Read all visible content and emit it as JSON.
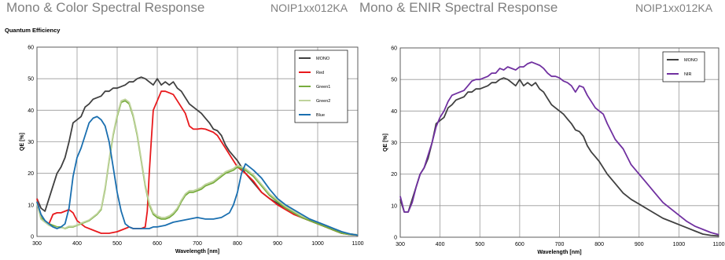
{
  "headers": {
    "left_title": "Mono & Color Spectral Response",
    "left_part": "NOIP1xx012KA",
    "right_title": "Mono & ENIR Spectral Response",
    "right_part": "NOIP1xx012KA",
    "left_subtitle": "Quantum Efficiency"
  },
  "colors": {
    "mono": "#404040",
    "red": "#e8191c",
    "green1": "#77ac3d",
    "green2": "#bfd39c",
    "blue": "#1a6fb0",
    "nir": "#7030a0",
    "grid": "#999999"
  },
  "chart_data": [
    {
      "type": "line",
      "title": "Quantum Efficiency",
      "xlabel": "Wavelength [nm]",
      "ylabel": "QE [%]",
      "xlim": [
        300,
        1100
      ],
      "ylim": [
        0,
        60
      ],
      "xticks": [
        300,
        400,
        500,
        600,
        700,
        800,
        900,
        1000,
        1100
      ],
      "yticks": [
        0,
        10,
        20,
        30,
        40,
        50,
        60
      ],
      "grid": true,
      "legend_position": "top-right",
      "series": [
        {
          "name": "MONO",
          "color": "#404040",
          "x": [
            300,
            310,
            320,
            330,
            340,
            350,
            360,
            370,
            380,
            390,
            400,
            410,
            420,
            430,
            440,
            450,
            460,
            470,
            480,
            490,
            500,
            510,
            520,
            530,
            540,
            550,
            560,
            570,
            580,
            590,
            600,
            610,
            620,
            630,
            640,
            650,
            660,
            670,
            680,
            690,
            700,
            710,
            720,
            730,
            740,
            750,
            760,
            770,
            780,
            790,
            800,
            820,
            840,
            860,
            880,
            900,
            920,
            940,
            960,
            980,
            1000,
            1020,
            1040,
            1060,
            1080,
            1100
          ],
          "y": [
            12,
            9,
            8,
            12,
            16,
            20,
            22,
            25,
            30,
            36,
            37,
            38,
            41,
            42,
            43.5,
            44,
            44.5,
            46,
            46,
            47,
            47,
            47.5,
            48,
            49,
            49,
            50,
            50.5,
            50,
            49,
            48,
            50,
            48,
            49,
            48,
            49,
            47,
            46,
            44,
            42,
            41,
            40,
            39,
            37.5,
            36,
            34,
            33.5,
            32,
            29,
            27,
            25.5,
            24,
            20,
            17,
            14,
            12,
            10.5,
            9,
            7.5,
            6,
            5,
            4,
            3,
            2,
            1,
            0.8,
            0.5
          ]
        },
        {
          "name": "Red",
          "color": "#e8191c",
          "x": [
            300,
            310,
            320,
            330,
            340,
            350,
            360,
            370,
            380,
            390,
            400,
            420,
            440,
            460,
            480,
            500,
            520,
            530,
            540,
            550,
            560,
            570,
            575,
            580,
            585,
            590,
            600,
            610,
            620,
            630,
            640,
            650,
            660,
            670,
            680,
            690,
            700,
            710,
            720,
            730,
            740,
            750,
            760,
            770,
            780,
            790,
            800,
            820,
            840,
            860,
            880,
            900,
            920,
            940,
            960,
            980,
            1000,
            1020,
            1040,
            1060,
            1080,
            1100
          ],
          "y": [
            12,
            6,
            5,
            4,
            7,
            7.5,
            7.5,
            8,
            8.5,
            7.5,
            5,
            3,
            2,
            1,
            1,
            1.5,
            2.5,
            3,
            2.5,
            2.5,
            2.5,
            3,
            8,
            20,
            30,
            40,
            43,
            46,
            46,
            45.5,
            45,
            43,
            41,
            39,
            35,
            34,
            34,
            34.2,
            34,
            33.5,
            33,
            32,
            30,
            28,
            26,
            24,
            22,
            20,
            17.5,
            14,
            12,
            10,
            8.5,
            7,
            6,
            5,
            4,
            3,
            2,
            1,
            0.6,
            0.4
          ]
        },
        {
          "name": "Green1",
          "color": "#77ac3d",
          "x": [
            300,
            310,
            320,
            330,
            340,
            350,
            360,
            370,
            380,
            390,
            400,
            410,
            420,
            430,
            440,
            450,
            460,
            470,
            480,
            490,
            500,
            510,
            520,
            530,
            540,
            550,
            560,
            570,
            580,
            590,
            600,
            610,
            620,
            630,
            640,
            650,
            660,
            670,
            680,
            690,
            700,
            710,
            720,
            730,
            740,
            750,
            760,
            770,
            780,
            790,
            800,
            810,
            820,
            840,
            860,
            880,
            900,
            920,
            940,
            960,
            980,
            1000,
            1020,
            1040,
            1060,
            1080,
            1100
          ],
          "y": [
            11,
            6,
            5,
            4,
            3.5,
            3,
            3,
            2.5,
            3,
            3,
            3.5,
            4,
            4.5,
            5,
            6,
            7,
            8.5,
            15,
            24,
            32,
            38,
            42.5,
            43,
            42,
            38,
            32,
            24,
            16,
            10,
            7,
            6,
            5.5,
            5.5,
            6,
            7,
            8.5,
            11,
            13,
            14,
            14,
            14.5,
            15,
            16,
            16.5,
            17,
            18,
            19,
            20,
            20.5,
            21,
            22,
            21.5,
            21,
            19,
            16,
            13,
            11,
            9,
            7.5,
            6,
            5,
            4,
            3,
            2,
            1,
            0.6,
            0.4
          ]
        },
        {
          "name": "Green2",
          "color": "#bfd39c",
          "x": [
            300,
            310,
            320,
            330,
            340,
            350,
            360,
            370,
            380,
            390,
            400,
            410,
            420,
            430,
            440,
            450,
            460,
            470,
            480,
            490,
            500,
            510,
            520,
            530,
            540,
            550,
            560,
            570,
            580,
            590,
            600,
            610,
            620,
            630,
            640,
            650,
            660,
            670,
            680,
            690,
            700,
            710,
            720,
            730,
            740,
            750,
            760,
            770,
            780,
            790,
            800,
            810,
            820,
            840,
            860,
            880,
            900,
            920,
            940,
            960,
            980,
            1000,
            1020,
            1040,
            1060,
            1080,
            1100
          ],
          "y": [
            10.5,
            5.5,
            4.5,
            3.5,
            3,
            2.8,
            2.8,
            2.6,
            3.2,
            3.2,
            3.6,
            4.2,
            4.7,
            5.2,
            6.2,
            7.2,
            8.8,
            15.5,
            24.5,
            32.5,
            38.5,
            43,
            43.5,
            42.5,
            38.5,
            32.5,
            24.5,
            16.5,
            10.5,
            7.5,
            6.5,
            6,
            6,
            6.5,
            7.5,
            9,
            11.5,
            13.5,
            14.5,
            14.5,
            15,
            15.5,
            16.5,
            17,
            17.5,
            18.5,
            19.5,
            20.5,
            21,
            21.5,
            22.5,
            22,
            21.5,
            19.5,
            16.5,
            13.5,
            11.5,
            9.5,
            8,
            6.5,
            5.5,
            4.5,
            3.5,
            2.5,
            1.5,
            0.8,
            0.5
          ]
        },
        {
          "name": "Blue",
          "color": "#1a6fb0",
          "x": [
            300,
            310,
            320,
            330,
            340,
            350,
            360,
            370,
            380,
            390,
            400,
            410,
            420,
            430,
            440,
            450,
            460,
            470,
            480,
            490,
            500,
            510,
            520,
            530,
            540,
            550,
            560,
            570,
            580,
            590,
            600,
            620,
            640,
            660,
            680,
            700,
            720,
            740,
            760,
            780,
            790,
            800,
            810,
            820,
            840,
            860,
            880,
            900,
            920,
            940,
            960,
            980,
            1000,
            1020,
            1040,
            1060,
            1080,
            1100
          ],
          "y": [
            11,
            7,
            5,
            4,
            3,
            2.5,
            3,
            4,
            9,
            19,
            25,
            28,
            32,
            36,
            37.5,
            38,
            37,
            35,
            30,
            22,
            14,
            8,
            4,
            3,
            2.5,
            2.5,
            2.5,
            2.5,
            2.5,
            3,
            3,
            3.5,
            4.5,
            5,
            5.5,
            6,
            5.5,
            5.5,
            6,
            7.5,
            10,
            14,
            20,
            23,
            21,
            18.5,
            15,
            12,
            10,
            8.5,
            7,
            5.5,
            4.5,
            3.5,
            2.5,
            1.5,
            0.8,
            0.4
          ]
        }
      ]
    },
    {
      "type": "line",
      "xlabel": "Wavelength [nm]",
      "ylabel": "QE [%]",
      "xlim": [
        300,
        1100
      ],
      "ylim": [
        0,
        60
      ],
      "xticks": [
        300,
        400,
        500,
        600,
        700,
        800,
        900,
        1000,
        1100
      ],
      "yticks": [
        0,
        10,
        20,
        30,
        40,
        50,
        60
      ],
      "grid": true,
      "legend_position": "top-right",
      "series": [
        {
          "name": "MONO",
          "color": "#404040",
          "x": [
            300,
            310,
            320,
            330,
            340,
            350,
            360,
            370,
            380,
            390,
            400,
            410,
            420,
            430,
            440,
            450,
            460,
            470,
            480,
            490,
            500,
            510,
            520,
            530,
            540,
            550,
            560,
            570,
            580,
            590,
            600,
            610,
            620,
            630,
            640,
            650,
            660,
            670,
            680,
            690,
            700,
            710,
            720,
            730,
            740,
            750,
            760,
            770,
            780,
            790,
            800,
            820,
            840,
            860,
            880,
            900,
            920,
            940,
            960,
            980,
            1000,
            1020,
            1040,
            1060,
            1080,
            1100
          ],
          "y": [
            12,
            8,
            8,
            12,
            16,
            20,
            22,
            25,
            30,
            36,
            37,
            38,
            41,
            42,
            43.5,
            44,
            44.5,
            46,
            46,
            47,
            47,
            47.5,
            48,
            49,
            49,
            50,
            50.5,
            50,
            49,
            48,
            50,
            48,
            49,
            48,
            49,
            47,
            46,
            44,
            42,
            41,
            40,
            39,
            37.5,
            36,
            34,
            33.5,
            32,
            29,
            27,
            25.5,
            24,
            20,
            17,
            14,
            12,
            10.5,
            9,
            7.5,
            6,
            5,
            4,
            3,
            2,
            1,
            0.6,
            0.4
          ]
        },
        {
          "name": "NIR",
          "color": "#7030a0",
          "x": [
            300,
            310,
            320,
            330,
            340,
            350,
            360,
            370,
            380,
            390,
            400,
            410,
            420,
            430,
            440,
            450,
            460,
            470,
            480,
            490,
            500,
            510,
            520,
            530,
            540,
            550,
            560,
            570,
            580,
            590,
            600,
            610,
            620,
            630,
            640,
            650,
            660,
            670,
            680,
            690,
            700,
            710,
            720,
            730,
            740,
            750,
            760,
            770,
            780,
            790,
            800,
            810,
            820,
            840,
            860,
            880,
            900,
            920,
            940,
            960,
            980,
            1000,
            1020,
            1040,
            1060,
            1080,
            1100
          ],
          "y": [
            13,
            8,
            8,
            11,
            16,
            20,
            22,
            26,
            30,
            35,
            38,
            40,
            43,
            45,
            45.5,
            46,
            46.5,
            48,
            49.5,
            50,
            50,
            50.5,
            51,
            52,
            52,
            53.5,
            53,
            54,
            53.5,
            53,
            54,
            54,
            55,
            55.5,
            55,
            54.5,
            53.5,
            52,
            51,
            51,
            50.5,
            49.5,
            49,
            48,
            46,
            48,
            47.5,
            45,
            43,
            41,
            40,
            39,
            36,
            31,
            28,
            23,
            20,
            17,
            14,
            11,
            9,
            7,
            5,
            3.5,
            2.5,
            1.5,
            0.8
          ]
        }
      ]
    }
  ]
}
